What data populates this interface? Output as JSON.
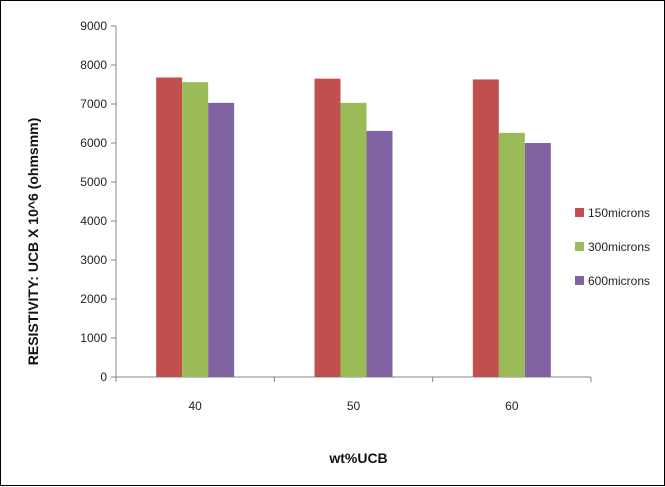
{
  "chart_data": {
    "type": "bar",
    "categories": [
      "40",
      "50",
      "60"
    ],
    "series": [
      {
        "name": "150microns",
        "values": [
          7680,
          7650,
          7630
        ],
        "color": "#C0504D"
      },
      {
        "name": "300microns",
        "values": [
          7560,
          7030,
          6260
        ],
        "color": "#9BBB59"
      },
      {
        "name": "600microns",
        "values": [
          7030,
          6310,
          6000
        ],
        "color": "#8064A2"
      }
    ],
    "xlabel": "wt%UCB",
    "ylabel": "RESISTIVITY: UCB X 10^6 (ohmsmm)",
    "ylim": [
      0,
      9000
    ],
    "yticks": [
      0,
      1000,
      2000,
      3000,
      4000,
      5000,
      6000,
      7000,
      8000,
      9000
    ],
    "grid": false,
    "legend_position": "right"
  }
}
